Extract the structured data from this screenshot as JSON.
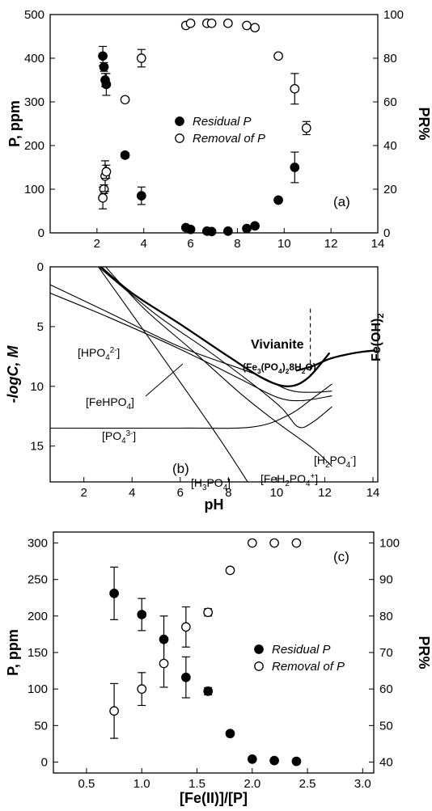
{
  "chart_data": [
    {
      "id": "a",
      "type": "scatter",
      "panel_label": "(a)",
      "xlabel": "",
      "ylabel": "P, ppm",
      "y2label": "PR%",
      "xlim": [
        0,
        14
      ],
      "ylim": [
        0,
        500
      ],
      "y2lim": [
        0,
        100
      ],
      "xticks": [
        2,
        4,
        6,
        8,
        10,
        12,
        14
      ],
      "yticks": [
        0,
        100,
        200,
        300,
        400,
        500
      ],
      "y2ticks": [
        0,
        20,
        40,
        60,
        80,
        100
      ],
      "legend_position": "center",
      "series": [
        {
          "name": "Residual P",
          "axis": "left",
          "marker": "filled-circle",
          "points": [
            {
              "x": 2.25,
              "y": 405,
              "err": 22
            },
            {
              "x": 2.3,
              "y": 380,
              "err": 10
            },
            {
              "x": 2.35,
              "y": 350,
              "err": 15
            },
            {
              "x": 2.4,
              "y": 340,
              "err": 25
            },
            {
              "x": 3.2,
              "y": 178,
              "err": 6
            },
            {
              "x": 3.9,
              "y": 85,
              "err": 20
            },
            {
              "x": 5.8,
              "y": 12,
              "err": 4
            },
            {
              "x": 6.0,
              "y": 8,
              "err": 4
            },
            {
              "x": 6.7,
              "y": 4,
              "err": 3
            },
            {
              "x": 6.9,
              "y": 3,
              "err": 3
            },
            {
              "x": 7.6,
              "y": 4,
              "err": 3
            },
            {
              "x": 8.4,
              "y": 10,
              "err": 4
            },
            {
              "x": 8.75,
              "y": 16,
              "err": 5
            },
            {
              "x": 9.75,
              "y": 75,
              "err": 5
            },
            {
              "x": 10.45,
              "y": 150,
              "err": 35
            }
          ]
        },
        {
          "name": "Removal of P",
          "axis": "right",
          "marker": "open-circle",
          "points": [
            {
              "x": 2.25,
              "y": 16,
              "err": 5
            },
            {
              "x": 2.3,
              "y": 20,
              "err": 2
            },
            {
              "x": 2.35,
              "y": 26,
              "err": 7
            },
            {
              "x": 2.4,
              "y": 28,
              "err": 3
            },
            {
              "x": 3.2,
              "y": 61,
              "err": 1
            },
            {
              "x": 3.9,
              "y": 80,
              "err": 4
            },
            {
              "x": 5.8,
              "y": 95,
              "err": 1
            },
            {
              "x": 6.0,
              "y": 96,
              "err": 1
            },
            {
              "x": 6.7,
              "y": 96,
              "err": 1
            },
            {
              "x": 6.9,
              "y": 96,
              "err": 1
            },
            {
              "x": 7.6,
              "y": 96,
              "err": 1
            },
            {
              "x": 8.4,
              "y": 95,
              "err": 1
            },
            {
              "x": 8.75,
              "y": 94,
              "err": 1
            },
            {
              "x": 9.75,
              "y": 81,
              "err": 1
            },
            {
              "x": 10.45,
              "y": 66,
              "err": 7
            },
            {
              "x": 10.95,
              "y": 48,
              "err": 3
            }
          ]
        }
      ]
    },
    {
      "id": "b",
      "type": "line",
      "panel_label": "(b)",
      "xlabel": "pH",
      "ylabel": "-logC, M",
      "xlim": [
        0.6,
        14.2
      ],
      "ylim": [
        0,
        18
      ],
      "y_inverted": true,
      "xticks": [
        2,
        4,
        6,
        8,
        10,
        12,
        14
      ],
      "yticks": [
        0,
        5,
        10,
        15
      ],
      "labels": {
        "hpo4": [
          "[HPO",
          "4",
          "2-",
          "]"
        ],
        "fehpo4": [
          "[FeHPO",
          "4",
          "]"
        ],
        "po4": [
          "[PO",
          "4",
          "3-",
          "]"
        ],
        "h3po4": [
          "[H",
          "3",
          "PO",
          "4",
          "]"
        ],
        "feh2po4": [
          "[FeH",
          "2",
          "PO",
          "4",
          "+",
          "]"
        ],
        "h2po4": [
          "[H",
          "2",
          "PO",
          "4",
          "-",
          "]"
        ],
        "vivianite": "Vivianite",
        "vivianite_formula": [
          "(Fe",
          "3",
          "(PO",
          "4",
          ")",
          "2",
          "8H",
          "2",
          "O)"
        ],
        "feoh2": [
          "Fe(OH)",
          "2"
        ]
      },
      "series": [
        {
          "id": "h3po4",
          "points": [
            [
              2.6,
              0
            ],
            [
              5,
              6.8
            ],
            [
              7.5,
              14
            ],
            [
              8.8,
              18
            ]
          ]
        },
        {
          "id": "hpo4",
          "points": [
            [
              0.6,
              1.5
            ],
            [
              3,
              3.8
            ],
            [
              6,
              6.7
            ],
            [
              9,
              8.9
            ],
            [
              10.5,
              10.3
            ],
            [
              11.5,
              10.5
            ],
            [
              12.3,
              10.4
            ]
          ]
        },
        {
          "id": "fehpo4",
          "points": [
            [
              0.6,
              2.2
            ],
            [
              3,
              4.2
            ],
            [
              6,
              6.9
            ],
            [
              8.5,
              9.4
            ],
            [
              10,
              10.9
            ],
            [
              11,
              11.2
            ],
            [
              12.3,
              10.8
            ]
          ]
        },
        {
          "id": "po4",
          "points": [
            [
              0.6,
              13.5
            ],
            [
              6,
              13.5
            ],
            [
              9,
              13.4
            ],
            [
              10.5,
              12.4
            ],
            [
              11.5,
              11.0
            ],
            [
              12.3,
              9.8
            ]
          ]
        },
        {
          "id": "h2po4",
          "points": [
            [
              2.6,
              0
            ],
            [
              5,
              4
            ],
            [
              7,
              6.8
            ],
            [
              9,
              9.8
            ],
            [
              10.2,
              11.8
            ],
            [
              10.9,
              13.4
            ],
            [
              11.5,
              13.0
            ],
            [
              12.3,
              11.7
            ]
          ]
        },
        {
          "id": "feh2po4",
          "points": [
            [
              2.9,
              0
            ],
            [
              4.5,
              3.5
            ],
            [
              6.5,
              7.0
            ],
            [
              8.5,
              10.6
            ],
            [
              10,
              13.0
            ],
            [
              11.5,
              15.2
            ],
            [
              12.3,
              16.7
            ]
          ]
        },
        {
          "id": "vivianite",
          "bold": true,
          "points": [
            [
              2.7,
              0
            ],
            [
              4,
              2.2
            ],
            [
              6,
              4.8
            ],
            [
              8,
              7.5
            ],
            [
              9.5,
              9.4
            ],
            [
              10.5,
              10.0
            ],
            [
              11.3,
              9.3
            ],
            [
              12.2,
              7.2
            ]
          ]
        },
        {
          "id": "feoh2",
          "bold": true,
          "points": [
            [
              10.8,
              8.7
            ],
            [
              11.5,
              8.3
            ],
            [
              12.2,
              7.7
            ],
            [
              13,
              7.3
            ],
            [
              13.6,
              7.1
            ],
            [
              14.1,
              7.0
            ]
          ]
        },
        {
          "id": "boundary",
          "dashed": true,
          "points": [
            [
              11.4,
              3.5
            ],
            [
              11.4,
              9.2
            ]
          ]
        }
      ]
    },
    {
      "id": "c",
      "type": "scatter",
      "panel_label": "(c)",
      "xlabel": "[Fe(II)]/[P]",
      "ylabel": "P, ppm",
      "y2label": "PR%",
      "xlim": [
        0.2,
        3.1
      ],
      "ylim": [
        -15,
        315
      ],
      "y2lim": [
        37,
        103
      ],
      "xticks": [
        0.5,
        1.0,
        1.5,
        2.0,
        2.5,
        3.0
      ],
      "xtick_labels": [
        "0.5",
        "1.0",
        "1.5",
        "2.0",
        "2.5",
        "3.0"
      ],
      "yticks": [
        0,
        50,
        100,
        150,
        200,
        250,
        300
      ],
      "y2ticks": [
        40,
        50,
        60,
        70,
        80,
        90,
        100
      ],
      "legend_position": "right",
      "series": [
        {
          "name": "Residual P",
          "axis": "left",
          "marker": "filled-circle",
          "points": [
            {
              "x": 0.75,
              "y": 231,
              "err": 36
            },
            {
              "x": 1.0,
              "y": 202,
              "err": 22
            },
            {
              "x": 1.2,
              "y": 168,
              "err": 32
            },
            {
              "x": 1.4,
              "y": 116,
              "err": 28
            },
            {
              "x": 1.6,
              "y": 97,
              "err": 5
            },
            {
              "x": 1.8,
              "y": 39,
              "err": 2
            },
            {
              "x": 2.0,
              "y": 4,
              "err": 2
            },
            {
              "x": 2.2,
              "y": 2,
              "err": 1
            },
            {
              "x": 2.4,
              "y": 1,
              "err": 1
            }
          ]
        },
        {
          "name": "Removal of P",
          "axis": "right",
          "marker": "open-circle",
          "points": [
            {
              "x": 0.75,
              "y": 54,
              "err": 7.5
            },
            {
              "x": 1.0,
              "y": 60,
              "err": 4.5
            },
            {
              "x": 1.2,
              "y": 67,
              "err": 6.5
            },
            {
              "x": 1.4,
              "y": 77,
              "err": 5.5
            },
            {
              "x": 1.6,
              "y": 81,
              "err": 1
            },
            {
              "x": 1.8,
              "y": 92.5,
              "err": 0.5
            },
            {
              "x": 2.0,
              "y": 100,
              "err": 0.5
            },
            {
              "x": 2.2,
              "y": 100,
              "err": 0.5
            },
            {
              "x": 2.4,
              "y": 100,
              "err": 0.5
            }
          ]
        }
      ]
    }
  ]
}
